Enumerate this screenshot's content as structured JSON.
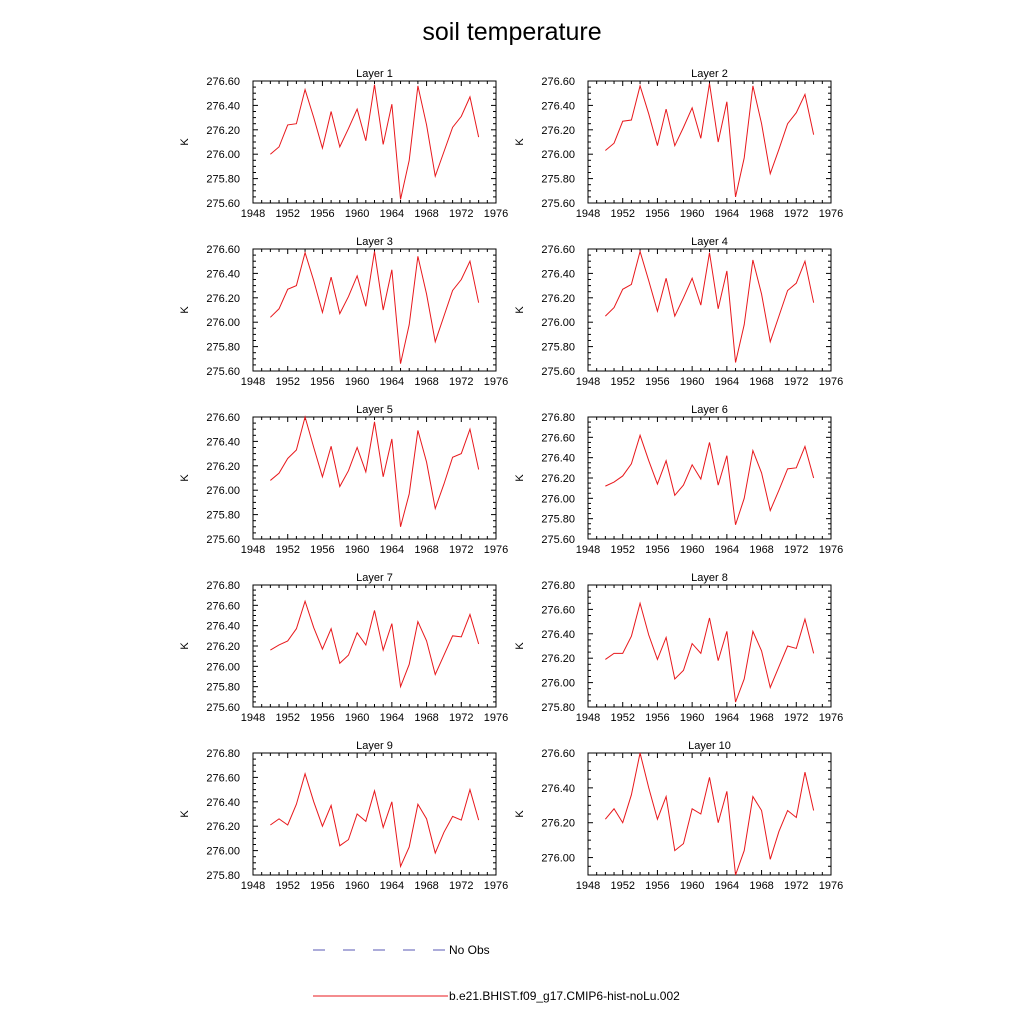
{
  "title": "soil temperature",
  "x_ticks": [
    "1948",
    "1952",
    "1956",
    "1960",
    "1964",
    "1968",
    "1972",
    "1976"
  ],
  "x_range": [
    1948,
    1976
  ],
  "years": [
    1950,
    1951,
    1952,
    1953,
    1954,
    1955,
    1956,
    1957,
    1958,
    1959,
    1960,
    1961,
    1962,
    1963,
    1964,
    1965,
    1966,
    1967,
    1968,
    1969,
    1970,
    1971,
    1972,
    1973,
    1974
  ],
  "legend": {
    "obs_label": "No Obs",
    "obs_color": "#5a5ab4",
    "model_label": "b.e21.BHIST.f09_g17.CMIP6-hist-noLu.002",
    "model_color": "#e8181c"
  },
  "chart_data": [
    {
      "type": "line",
      "title": "Layer 1",
      "ylabel": "K",
      "ylim": [
        275.6,
        276.6
      ],
      "y_ticks": [
        "275.60",
        "275.80",
        "276.00",
        "276.20",
        "276.40",
        "276.60"
      ],
      "series": [
        {
          "values": [
            276.0,
            276.06,
            276.24,
            276.25,
            276.53,
            276.3,
            276.05,
            276.35,
            276.06,
            276.21,
            276.37,
            276.11,
            276.57,
            276.08,
            276.41,
            275.63,
            275.95,
            276.56,
            276.24,
            275.82,
            276.02,
            276.22,
            276.31,
            276.47,
            276.14
          ]
        }
      ]
    },
    {
      "type": "line",
      "title": "Layer 2",
      "ylabel": "K",
      "ylim": [
        275.6,
        276.6
      ],
      "y_ticks": [
        "275.60",
        "275.80",
        "276.00",
        "276.20",
        "276.40",
        "276.60"
      ],
      "series": [
        {
          "values": [
            276.03,
            276.09,
            276.27,
            276.28,
            276.56,
            276.33,
            276.07,
            276.37,
            276.07,
            276.22,
            276.38,
            276.13,
            276.58,
            276.1,
            276.43,
            275.65,
            275.97,
            276.56,
            276.25,
            275.84,
            276.04,
            276.25,
            276.34,
            276.49,
            276.16
          ]
        }
      ]
    },
    {
      "type": "line",
      "title": "Layer 3",
      "ylabel": "K",
      "ylim": [
        275.6,
        276.6
      ],
      "y_ticks": [
        "275.60",
        "275.80",
        "276.00",
        "276.20",
        "276.40",
        "276.60"
      ],
      "series": [
        {
          "values": [
            276.04,
            276.11,
            276.27,
            276.3,
            276.57,
            276.34,
            276.08,
            276.37,
            276.07,
            276.21,
            276.38,
            276.13,
            276.58,
            276.1,
            276.43,
            275.66,
            275.98,
            276.54,
            276.23,
            275.84,
            276.05,
            276.26,
            276.35,
            276.5,
            276.16
          ]
        }
      ]
    },
    {
      "type": "line",
      "title": "Layer 4",
      "ylabel": "K",
      "ylim": [
        275.6,
        276.6
      ],
      "y_ticks": [
        "275.60",
        "275.80",
        "276.00",
        "276.20",
        "276.40",
        "276.60"
      ],
      "series": [
        {
          "values": [
            276.05,
            276.12,
            276.27,
            276.31,
            276.58,
            276.34,
            276.09,
            276.36,
            276.05,
            276.2,
            276.36,
            276.14,
            276.57,
            276.11,
            276.42,
            275.67,
            275.98,
            276.51,
            276.23,
            275.84,
            276.05,
            276.26,
            276.32,
            276.5,
            276.16
          ]
        }
      ]
    },
    {
      "type": "line",
      "title": "Layer 5",
      "ylabel": "K",
      "ylim": [
        275.6,
        276.6
      ],
      "y_ticks": [
        "275.60",
        "275.80",
        "276.00",
        "276.20",
        "276.40",
        "276.60"
      ],
      "series": [
        {
          "values": [
            276.08,
            276.14,
            276.26,
            276.33,
            276.6,
            276.35,
            276.11,
            276.36,
            276.03,
            276.16,
            276.35,
            276.15,
            276.56,
            276.11,
            276.42,
            275.7,
            275.97,
            276.49,
            276.23,
            275.85,
            276.05,
            276.27,
            276.3,
            276.5,
            276.17
          ]
        }
      ]
    },
    {
      "type": "line",
      "title": "Layer 6",
      "ylabel": "K",
      "ylim": [
        275.6,
        276.8
      ],
      "y_ticks": [
        "275.60",
        "275.80",
        "276.00",
        "276.20",
        "276.40",
        "276.60",
        "276.80"
      ],
      "series": [
        {
          "values": [
            276.12,
            276.16,
            276.22,
            276.34,
            276.62,
            276.37,
            276.14,
            276.37,
            276.03,
            276.13,
            276.33,
            276.19,
            276.55,
            276.13,
            276.42,
            275.74,
            276.0,
            276.47,
            276.25,
            275.88,
            276.08,
            276.29,
            276.3,
            276.51,
            276.2
          ]
        }
      ]
    },
    {
      "type": "line",
      "title": "Layer 7",
      "ylabel": "K",
      "ylim": [
        275.6,
        276.8
      ],
      "y_ticks": [
        "275.60",
        "275.80",
        "276.00",
        "276.20",
        "276.40",
        "276.60",
        "276.80"
      ],
      "series": [
        {
          "values": [
            276.16,
            276.21,
            276.25,
            276.37,
            276.64,
            276.38,
            276.17,
            276.37,
            276.03,
            276.11,
            276.33,
            276.21,
            276.55,
            276.16,
            276.42,
            275.8,
            276.02,
            276.44,
            276.25,
            275.92,
            276.11,
            276.3,
            276.29,
            276.51,
            276.22
          ]
        }
      ]
    },
    {
      "type": "line",
      "title": "Layer 8",
      "ylabel": "K",
      "ylim": [
        275.8,
        276.8
      ],
      "y_ticks": [
        "275.80",
        "276.00",
        "276.20",
        "276.40",
        "276.60",
        "276.80"
      ],
      "series": [
        {
          "values": [
            276.19,
            276.24,
            276.24,
            276.38,
            276.65,
            276.39,
            276.19,
            276.37,
            276.03,
            276.1,
            276.32,
            276.24,
            276.53,
            276.18,
            276.42,
            275.84,
            276.03,
            276.42,
            276.26,
            275.96,
            276.13,
            276.3,
            276.28,
            276.52,
            276.24
          ]
        }
      ]
    },
    {
      "type": "line",
      "title": "Layer 9",
      "ylabel": "K",
      "ylim": [
        275.8,
        276.8
      ],
      "y_ticks": [
        "275.80",
        "276.00",
        "276.20",
        "276.40",
        "276.60",
        "276.80"
      ],
      "series": [
        {
          "values": [
            276.21,
            276.26,
            276.21,
            276.38,
            276.63,
            276.4,
            276.2,
            276.37,
            276.04,
            276.09,
            276.3,
            276.24,
            276.49,
            276.19,
            276.4,
            275.87,
            276.03,
            276.38,
            276.26,
            275.98,
            276.15,
            276.28,
            276.25,
            276.5,
            276.25
          ]
        }
      ]
    },
    {
      "type": "line",
      "title": "Layer 10",
      "ylabel": "K",
      "ylim": [
        275.9,
        276.6
      ],
      "y_ticks": [
        "276.00",
        "276.20",
        "276.40",
        "276.60"
      ],
      "series": [
        {
          "values": [
            276.22,
            276.28,
            276.2,
            276.36,
            276.6,
            276.4,
            276.22,
            276.35,
            276.04,
            276.08,
            276.28,
            276.25,
            276.46,
            276.2,
            276.38,
            275.9,
            276.04,
            276.35,
            276.27,
            275.99,
            276.15,
            276.27,
            276.23,
            276.49,
            276.27
          ]
        }
      ]
    }
  ]
}
